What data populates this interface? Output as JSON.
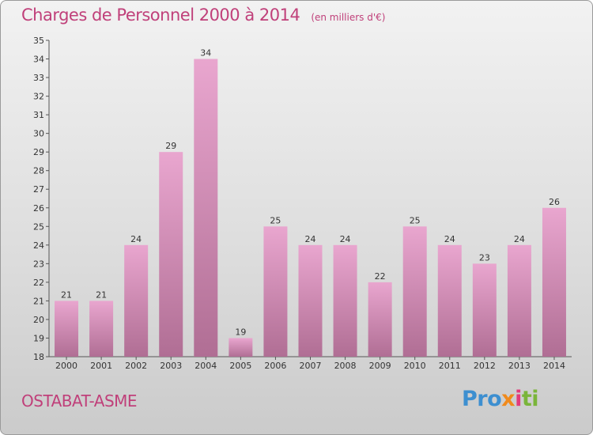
{
  "header": {
    "title": "Charges de Personnel 2000 à 2014",
    "subtitle": "(en milliers d'€)"
  },
  "footer": {
    "commune": "OSTABAT-ASME",
    "logo_parts": [
      "Pro",
      "x",
      "i",
      "ti"
    ]
  },
  "colors": {
    "title": "#c0407a",
    "bar_top": "#e9a6cf",
    "bar_bottom": "#b06e94"
  },
  "chart_data": {
    "type": "bar",
    "title": "Charges de Personnel 2000 à 2014",
    "subtitle": "(en milliers d'€)",
    "categories": [
      "2000",
      "2001",
      "2002",
      "2003",
      "2004",
      "2005",
      "2006",
      "2007",
      "2008",
      "2009",
      "2010",
      "2011",
      "2012",
      "2013",
      "2014"
    ],
    "values": [
      21,
      21,
      24,
      29,
      34,
      19,
      25,
      24,
      24,
      22,
      25,
      24,
      23,
      24,
      26
    ],
    "ylim": [
      18,
      35
    ],
    "yticks": [
      18,
      19,
      20,
      21,
      22,
      23,
      24,
      25,
      26,
      27,
      28,
      29,
      30,
      31,
      32,
      33,
      34,
      35
    ],
    "grid": false
  }
}
